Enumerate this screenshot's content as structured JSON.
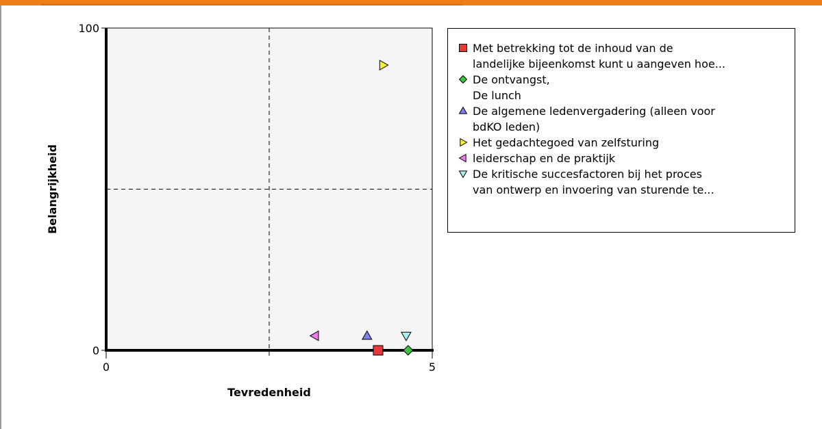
{
  "colors": {
    "accent_bar": "#f07c17",
    "plot_background": "#f5f5f5",
    "red_square": "#e8393a",
    "green_diamond": "#3fc23f",
    "blue_triangle": "#7f82ee",
    "yellow_triangle": "#f8f22e",
    "magenta_triangle": "#ef7ae8",
    "cyan_triangle": "#a8f0f4"
  },
  "chart_data": {
    "type": "scatter",
    "xlabel": "Tevredenheid",
    "ylabel": "Belangrijkheid",
    "xlim": [
      0,
      5
    ],
    "ylim": [
      0,
      100
    ],
    "x_ticks": [
      "0",
      "5"
    ],
    "y_ticks": [
      "0",
      "100"
    ],
    "reference_lines": {
      "x": 2.5,
      "y": 50
    },
    "grid": false,
    "legend_position": "right",
    "series": [
      {
        "name": "Met betrekking tot de inhoud van de\nlandelijke bijeenkomst kunt u aangeven hoe...",
        "marker": "square",
        "color": "#e8393a",
        "x": 4.17,
        "y": 0
      },
      {
        "name": "De ontvangst,\nDe lunch",
        "marker": "diamond",
        "color": "#3fc23f",
        "x": 4.63,
        "y": 0
      },
      {
        "name": "De algemene ledenvergadering (alleen voor\nbdKO leden)",
        "marker": "triangle-up",
        "color": "#7f82ee",
        "x": 4.0,
        "y": 4.5
      },
      {
        "name": "Het gedachtegoed van zelfsturing",
        "marker": "triangle-right",
        "color": "#f8f22e",
        "x": 4.25,
        "y": 88.5
      },
      {
        "name": "leiderschap en de praktijk",
        "marker": "triangle-left",
        "color": "#ef7ae8",
        "x": 3.2,
        "y": 4.5
      },
      {
        "name": "De kritische succesfactoren bij het proces\nvan ontwerp en invoering van sturende te...",
        "marker": "triangle-down",
        "color": "#a8f0f4",
        "x": 4.6,
        "y": 4.5
      }
    ]
  }
}
